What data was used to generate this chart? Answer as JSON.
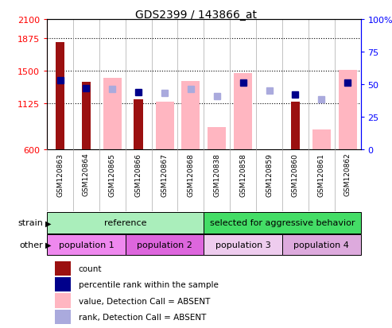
{
  "title": "GDS2399 / 143866_at",
  "samples": [
    "GSM120863",
    "GSM120864",
    "GSM120865",
    "GSM120866",
    "GSM120867",
    "GSM120868",
    "GSM120838",
    "GSM120858",
    "GSM120859",
    "GSM120860",
    "GSM120861",
    "GSM120862"
  ],
  "count_values": [
    1830,
    1380,
    null,
    1175,
    null,
    null,
    null,
    null,
    null,
    1145,
    null,
    null
  ],
  "value_absent": [
    null,
    null,
    1420,
    null,
    1145,
    1385,
    850,
    1480,
    null,
    null,
    830,
    1510
  ],
  "percentile_rank": [
    53,
    47,
    null,
    44,
    null,
    null,
    null,
    51,
    null,
    42,
    null,
    51
  ],
  "rank_absent": [
    null,
    null,
    46,
    null,
    43,
    46,
    41,
    null,
    45,
    null,
    38,
    null
  ],
  "ylim_left": [
    600,
    2100
  ],
  "ylim_right": [
    0,
    100
  ],
  "yticks_left": [
    600,
    1125,
    1500,
    1875,
    2100
  ],
  "yticks_right": [
    0,
    25,
    50,
    75,
    100
  ],
  "ytick_right_labels": [
    "0",
    "25",
    "50",
    "75",
    "100%"
  ],
  "hlines": [
    1125,
    1500,
    1875
  ],
  "color_count": "#9B1010",
  "color_value_absent": "#FFB6C1",
  "color_percentile": "#00008B",
  "color_rank_absent": "#AAAADD",
  "strain_ref_color": "#AAEEBB",
  "strain_agg_color": "#44DD66",
  "pop1_color": "#EE88EE",
  "pop2_color": "#DD66DD",
  "pop3_color": "#EECCEE",
  "pop4_color": "#DDAADD",
  "strain_groups": [
    {
      "label": "reference",
      "start": 0,
      "end": 6
    },
    {
      "label": "selected for aggressive behavior",
      "start": 6,
      "end": 12
    }
  ],
  "population_groups": [
    {
      "label": "population 1",
      "start": 0,
      "end": 3
    },
    {
      "label": "population 2",
      "start": 3,
      "end": 6
    },
    {
      "label": "population 3",
      "start": 6,
      "end": 9
    },
    {
      "label": "population 4",
      "start": 9,
      "end": 12
    }
  ],
  "legend_items": [
    {
      "label": "count",
      "color": "#9B1010"
    },
    {
      "label": "percentile rank within the sample",
      "color": "#00008B"
    },
    {
      "label": "value, Detection Call = ABSENT",
      "color": "#FFB6C1"
    },
    {
      "label": "rank, Detection Call = ABSENT",
      "color": "#AAAADD"
    }
  ]
}
